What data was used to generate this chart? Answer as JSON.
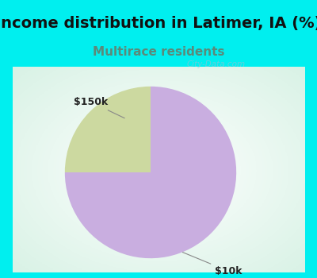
{
  "title": "Income distribution in Latimer, IA (%)",
  "subtitle": "Multirace residents",
  "title_color": "#111111",
  "subtitle_color": "#5a8a7a",
  "slices": [
    75.0,
    25.0
  ],
  "labels": [
    "$10k",
    "$150k"
  ],
  "slice_colors": [
    "#c9aee0",
    "#ccd9a0"
  ],
  "background_cyan": "#00efef",
  "label_fontsize": 9,
  "title_fontsize": 14,
  "subtitle_fontsize": 11,
  "startangle": 90,
  "watermark_color": "#aabbcc",
  "watermark_alpha": 0.6
}
